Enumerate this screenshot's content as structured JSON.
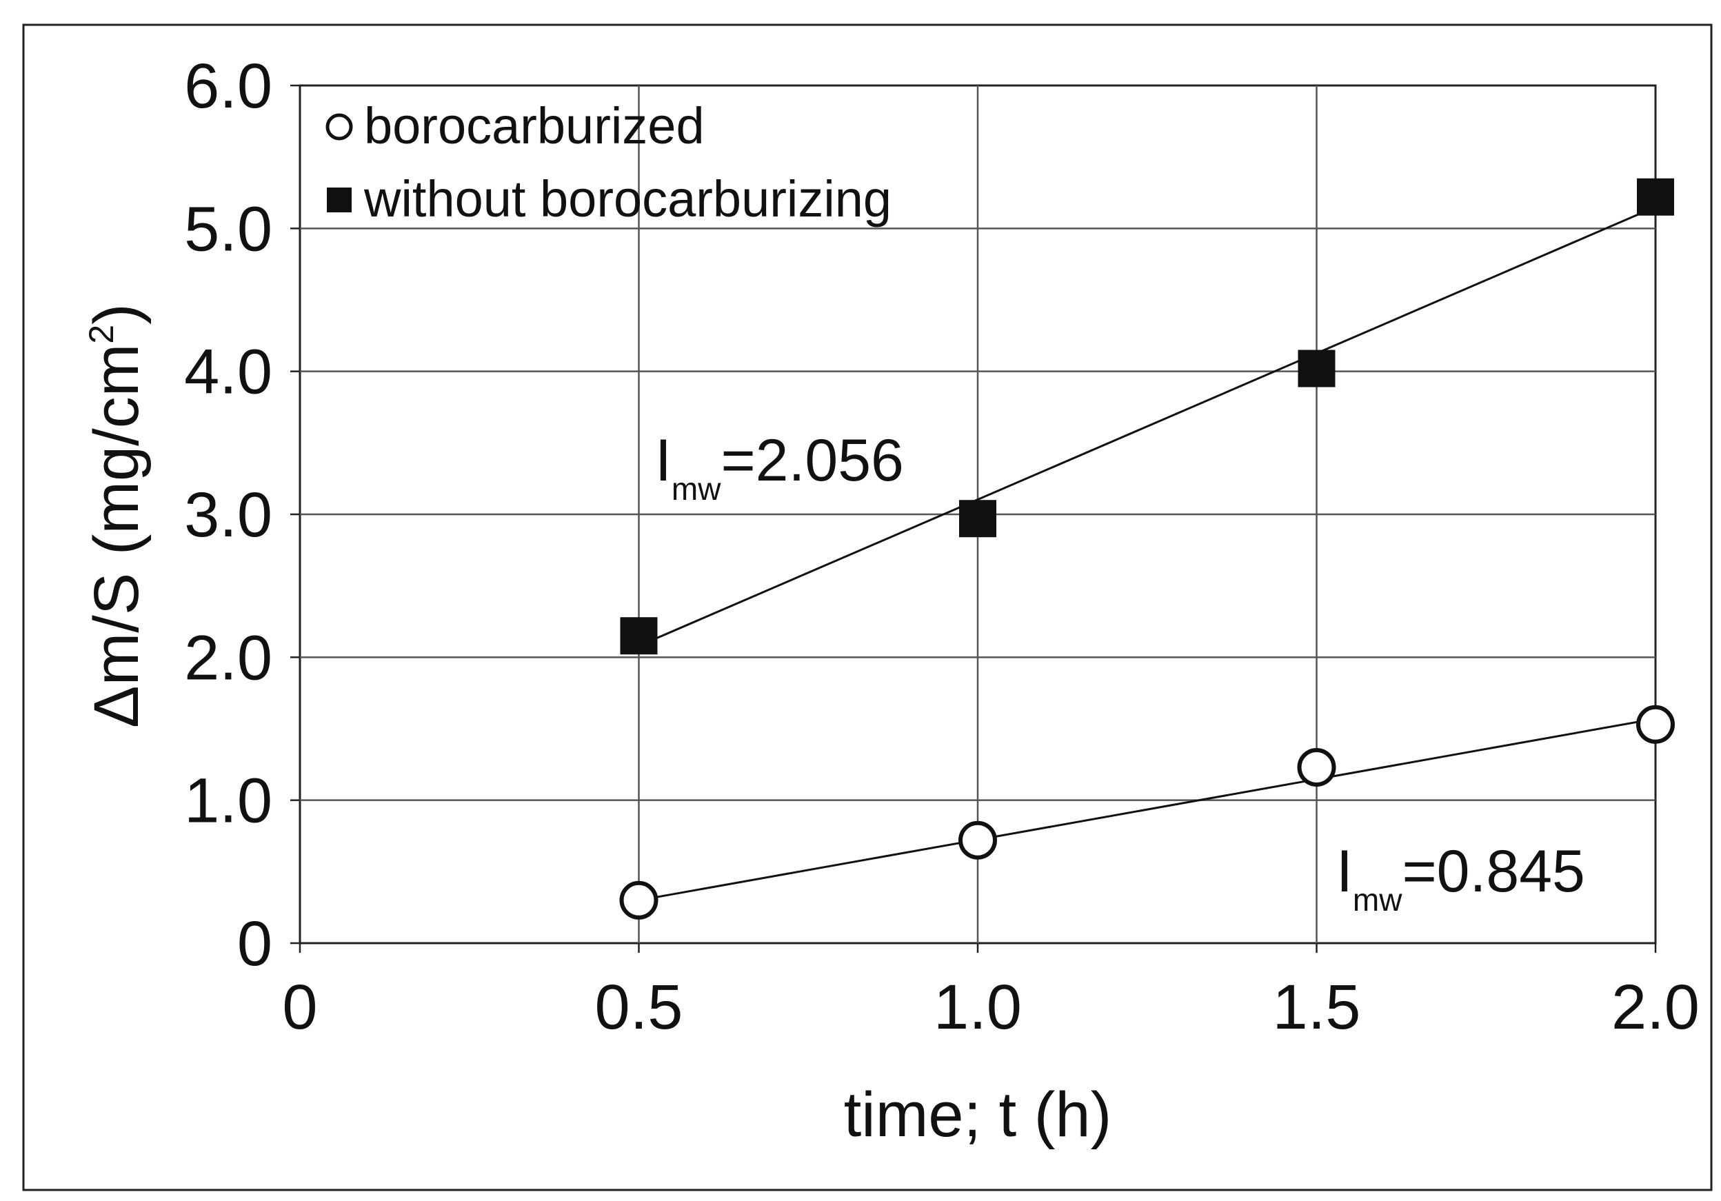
{
  "chart_data": {
    "type": "line",
    "title": "",
    "xlabel": "time; t (h)",
    "ylabel": "Δm/S  (mg/cm",
    "ylabel_superscript": "2",
    "ylabel_close": ")",
    "xlim": [
      0,
      2.0
    ],
    "ylim": [
      0,
      6.0
    ],
    "x_ticks": [
      0,
      0.5,
      1.0,
      1.5,
      2.0
    ],
    "x_tick_labels": [
      "0",
      "0.5",
      "1.0",
      "1.5",
      "2.0"
    ],
    "y_ticks": [
      0,
      1.0,
      2.0,
      3.0,
      4.0,
      5.0,
      6.0
    ],
    "y_tick_labels": [
      "0",
      "1.0",
      "2.0",
      "3.0",
      "4.0",
      "5.0",
      "6.0"
    ],
    "grid": true,
    "legend_position": "top-left",
    "series": [
      {
        "name": "borocarburized",
        "marker": "open-circle",
        "color": "#111111",
        "x": [
          0.5,
          1.0,
          1.5,
          2.0
        ],
        "y": [
          0.3,
          0.72,
          1.23,
          1.53
        ],
        "fit": {
          "x": [
            0.5,
            2.0
          ],
          "y": [
            0.3,
            1.57
          ]
        },
        "annotation": {
          "main": "I",
          "sub": "mw",
          "text": "=0.845"
        }
      },
      {
        "name": "without borocarburizing",
        "marker": "filled-square",
        "color": "#111111",
        "x": [
          0.5,
          1.0,
          1.5,
          2.0
        ],
        "y": [
          2.15,
          2.97,
          4.02,
          5.22
        ],
        "fit": {
          "x": [
            0.5,
            2.0
          ],
          "y": [
            2.08,
            5.15
          ]
        },
        "annotation": {
          "main": "I",
          "sub": "mw",
          "text": "=2.056"
        }
      }
    ]
  }
}
